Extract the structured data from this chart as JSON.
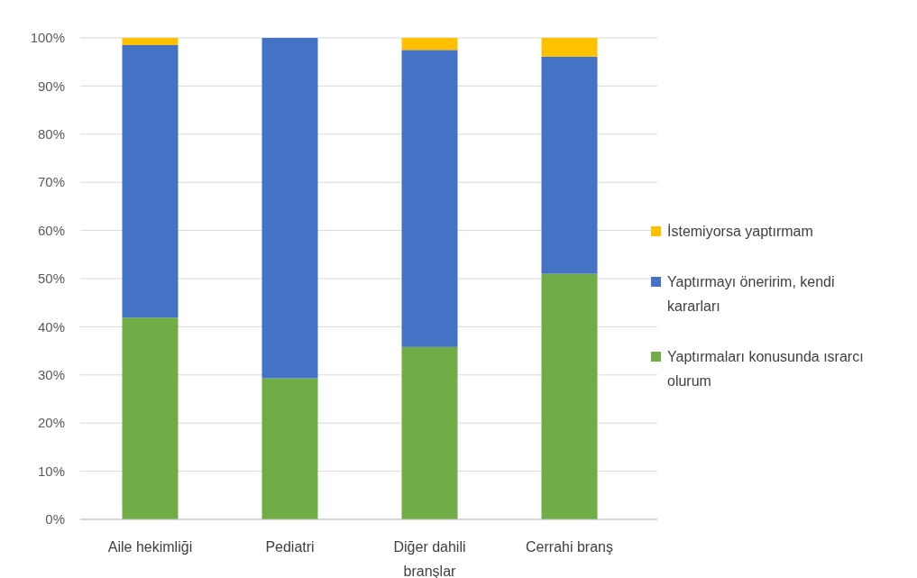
{
  "chart_data": {
    "type": "bar",
    "stacked": true,
    "categories": [
      "Aile hekimliği",
      "Pediatri",
      "Diğer dahili branşlar",
      "Cerrahi branş"
    ],
    "series": [
      {
        "name": "Yaptırmaları konusunda ısrarcı olurum",
        "color": "#70ad47",
        "values": [
          41.9,
          29.3,
          35.8,
          51.0
        ]
      },
      {
        "name": "Yaptırmayı öneririm, kendi kararları",
        "color": "#4472c4",
        "values": [
          56.6,
          70.7,
          61.7,
          45.1
        ]
      },
      {
        "name": "İstemiyorsa yaptırmam",
        "color": "#ffc000",
        "values": [
          1.5,
          0,
          2.5,
          3.9
        ]
      }
    ],
    "ylim": [
      0,
      100
    ],
    "yticks": [
      {
        "value": 0,
        "label": "0%"
      },
      {
        "value": 10,
        "label": "10%"
      },
      {
        "value": 20,
        "label": "20%"
      },
      {
        "value": 30,
        "label": "30%"
      },
      {
        "value": 40,
        "label": "40%"
      },
      {
        "value": 50,
        "label": "50%"
      },
      {
        "value": 60,
        "label": "60%"
      },
      {
        "value": 70,
        "label": "70%"
      },
      {
        "value": 80,
        "label": "80%"
      },
      {
        "value": 90,
        "label": "90%"
      },
      {
        "value": 100,
        "label": "100%"
      }
    ],
    "grid": "y",
    "legend": "right"
  }
}
